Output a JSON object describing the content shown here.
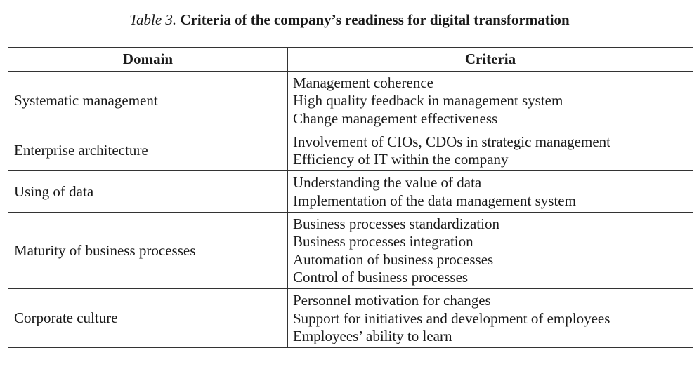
{
  "caption": {
    "label": "Table 3.",
    "title": "Criteria of the company’s readiness for digital transformation"
  },
  "table": {
    "headers": [
      "Domain",
      "Criteria"
    ],
    "rows": [
      {
        "domain": "Systematic management",
        "criteria": [
          "Management coherence",
          "High quality feedback in management system",
          "Change management effectiveness"
        ]
      },
      {
        "domain": "Enterprise architecture",
        "criteria": [
          "Involvement of CIOs, CDOs in strategic management",
          "Efficiency of IT within the company"
        ]
      },
      {
        "domain": "Using of data",
        "criteria": [
          "Understanding the value of data",
          "Implementation of the data management system"
        ]
      },
      {
        "domain": "Maturity of business processes",
        "criteria": [
          "Business processes standardization",
          "Business processes integration",
          "Automation of business processes",
          "Control of business processes"
        ]
      },
      {
        "domain": "Corporate culture",
        "criteria": [
          "Personnel motivation for changes",
          "Support for initiatives and development of employees",
          "Employees’ ability to learn"
        ]
      }
    ]
  }
}
